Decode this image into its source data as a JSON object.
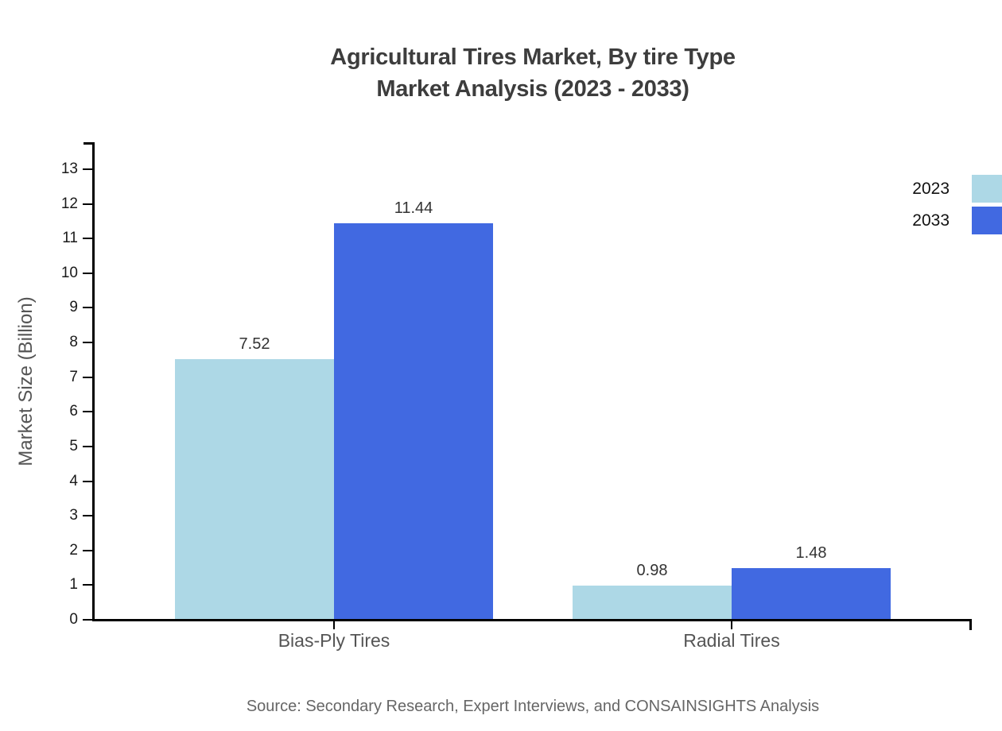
{
  "title": {
    "line1": "Agricultural Tires Market, By tire Type",
    "line2": "Market Analysis (2023 - 2033)"
  },
  "source": "Source: Secondary Research, Expert Interviews, and CONSAINSIGHTS Analysis",
  "chart_data": {
    "type": "bar",
    "categories": [
      "Bias-Ply Tires",
      "Radial Tires"
    ],
    "series": [
      {
        "name": "2023",
        "color": "#ADD8E6",
        "values": [
          7.52,
          0.98
        ]
      },
      {
        "name": "2033",
        "color": "#4169E1",
        "values": [
          11.44,
          1.48
        ]
      }
    ],
    "title": "Agricultural Tires Market, By tire Type Market Analysis (2023 - 2033)",
    "xlabel": "",
    "ylabel": "Market Size (Billion)",
    "ylim": [
      0,
      13
    ],
    "yticks": [
      0,
      1,
      2,
      3,
      4,
      5,
      6,
      7,
      8,
      9,
      10,
      11,
      12,
      13
    ],
    "grid": false,
    "legend_position": "top-right",
    "value_labels": true
  }
}
